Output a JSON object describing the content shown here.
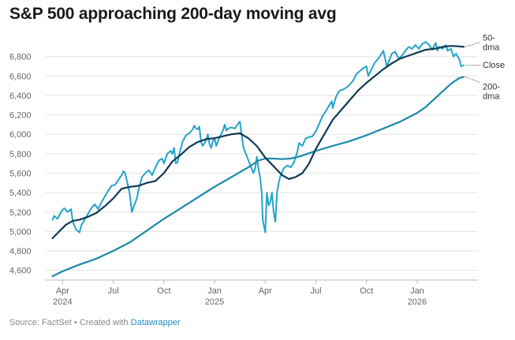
{
  "title": "S&P 500 approaching 200-day moving avg",
  "footer": {
    "source": "Source: FactSet",
    "separator": " • Created with ",
    "credit": "Datawrapper"
  },
  "colors": {
    "close": "#23a3c9",
    "dma50": "#0d3b56",
    "dma200": "#1a89a9",
    "grid": "#e2e2e2",
    "axis": "#bbbbbb"
  },
  "chart_data": {
    "type": "line",
    "title": "S&P 500 approaching 200-day moving avg",
    "xlabel": "",
    "ylabel": "",
    "x_unit": "months since Mar 1, 2024",
    "xlim": [
      0,
      25.6
    ],
    "ylim": [
      4500,
      6960
    ],
    "y_ticks": [
      4600,
      4800,
      5000,
      5200,
      5400,
      5600,
      5800,
      6000,
      6200,
      6400,
      6600,
      6800
    ],
    "y_tick_labels": [
      "4,600",
      "4,800",
      "5,000",
      "5,200",
      "5,400",
      "5,600",
      "5,800",
      "6,000",
      "6,200",
      "6,400",
      "6,600",
      "6,800"
    ],
    "x_ticks": [
      {
        "x": 1,
        "label": "Apr",
        "year": "2024"
      },
      {
        "x": 4,
        "label": "Jul",
        "year": ""
      },
      {
        "x": 7,
        "label": "Oct",
        "year": ""
      },
      {
        "x": 10,
        "label": "Jan",
        "year": "2025"
      },
      {
        "x": 13,
        "label": "Apr",
        "year": ""
      },
      {
        "x": 16,
        "label": "Jul",
        "year": ""
      },
      {
        "x": 19,
        "label": "Oct",
        "year": ""
      },
      {
        "x": 22,
        "label": "Jan",
        "year": "2026"
      }
    ],
    "grid": true,
    "series": [
      {
        "name": "Close",
        "end_label": "Close",
        "color_key": "close",
        "width": 2,
        "points": [
          [
            0.4,
            5120
          ],
          [
            0.5,
            5160
          ],
          [
            0.7,
            5130
          ],
          [
            0.9,
            5200
          ],
          [
            1.1,
            5240
          ],
          [
            1.3,
            5200
          ],
          [
            1.5,
            5230
          ],
          [
            1.6,
            5100
          ],
          [
            1.8,
            5020
          ],
          [
            2.0,
            4990
          ],
          [
            2.1,
            5060
          ],
          [
            2.3,
            5120
          ],
          [
            2.5,
            5180
          ],
          [
            2.7,
            5240
          ],
          [
            2.9,
            5280
          ],
          [
            3.1,
            5230
          ],
          [
            3.3,
            5300
          ],
          [
            3.5,
            5360
          ],
          [
            3.7,
            5420
          ],
          [
            3.9,
            5470
          ],
          [
            4.1,
            5480
          ],
          [
            4.3,
            5530
          ],
          [
            4.5,
            5580
          ],
          [
            4.6,
            5620
          ],
          [
            4.7,
            5600
          ],
          [
            4.9,
            5450
          ],
          [
            5.0,
            5360
          ],
          [
            5.1,
            5200
          ],
          [
            5.2,
            5250
          ],
          [
            5.4,
            5340
          ],
          [
            5.5,
            5430
          ],
          [
            5.7,
            5560
          ],
          [
            5.9,
            5600
          ],
          [
            6.1,
            5630
          ],
          [
            6.3,
            5580
          ],
          [
            6.5,
            5660
          ],
          [
            6.7,
            5730
          ],
          [
            6.9,
            5750
          ],
          [
            7.0,
            5700
          ],
          [
            7.2,
            5800
          ],
          [
            7.4,
            5830
          ],
          [
            7.5,
            5800
          ],
          [
            7.6,
            5860
          ],
          [
            7.7,
            5700
          ],
          [
            7.8,
            5710
          ],
          [
            7.9,
            5790
          ],
          [
            8.1,
            5920
          ],
          [
            8.3,
            5990
          ],
          [
            8.5,
            6010
          ],
          [
            8.7,
            6050
          ],
          [
            8.8,
            6090
          ],
          [
            8.9,
            6060
          ],
          [
            9.0,
            6050
          ],
          [
            9.1,
            6080
          ],
          [
            9.2,
            5920
          ],
          [
            9.3,
            5880
          ],
          [
            9.5,
            5940
          ],
          [
            9.6,
            6000
          ],
          [
            9.7,
            5900
          ],
          [
            9.8,
            5860
          ],
          [
            9.9,
            5930
          ],
          [
            10.0,
            5960
          ],
          [
            10.1,
            5880
          ],
          [
            10.3,
            5970
          ],
          [
            10.5,
            6040
          ],
          [
            10.6,
            6100
          ],
          [
            10.7,
            6040
          ],
          [
            10.8,
            6060
          ],
          [
            11.0,
            6070
          ],
          [
            11.2,
            6060
          ],
          [
            11.4,
            6110
          ],
          [
            11.5,
            6130
          ],
          [
            11.6,
            6000
          ],
          [
            11.7,
            5870
          ],
          [
            11.8,
            5820
          ],
          [
            11.9,
            5780
          ],
          [
            12.1,
            5690
          ],
          [
            12.3,
            5600
          ],
          [
            12.4,
            5640
          ],
          [
            12.5,
            5770
          ],
          [
            12.6,
            5650
          ],
          [
            12.7,
            5550
          ],
          [
            12.8,
            5390
          ],
          [
            12.85,
            5120
          ],
          [
            12.9,
            5080
          ],
          [
            13.0,
            4990
          ],
          [
            13.05,
            5200
          ],
          [
            13.1,
            5400
          ],
          [
            13.2,
            5270
          ],
          [
            13.3,
            5300
          ],
          [
            13.4,
            5400
          ],
          [
            13.5,
            5200
          ],
          [
            13.6,
            5100
          ],
          [
            13.65,
            5250
          ],
          [
            13.7,
            5400
          ],
          [
            13.8,
            5500
          ],
          [
            13.9,
            5570
          ],
          [
            14.1,
            5650
          ],
          [
            14.3,
            5680
          ],
          [
            14.5,
            5660
          ],
          [
            14.7,
            5710
          ],
          [
            14.9,
            5820
          ],
          [
            15.0,
            5910
          ],
          [
            15.2,
            5880
          ],
          [
            15.4,
            5960
          ],
          [
            15.6,
            5970
          ],
          [
            15.8,
            5980
          ],
          [
            16.0,
            6030
          ],
          [
            16.2,
            6110
          ],
          [
            16.4,
            6190
          ],
          [
            16.6,
            6240
          ],
          [
            16.8,
            6300
          ],
          [
            16.95,
            6340
          ],
          [
            17.0,
            6270
          ],
          [
            17.2,
            6390
          ],
          [
            17.4,
            6450
          ],
          [
            17.6,
            6460
          ],
          [
            17.8,
            6480
          ],
          [
            18.0,
            6510
          ],
          [
            18.2,
            6550
          ],
          [
            18.4,
            6620
          ],
          [
            18.6,
            6650
          ],
          [
            18.8,
            6680
          ],
          [
            19.0,
            6700
          ],
          [
            19.1,
            6600
          ],
          [
            19.3,
            6670
          ],
          [
            19.5,
            6740
          ],
          [
            19.7,
            6780
          ],
          [
            19.9,
            6830
          ],
          [
            20.0,
            6860
          ],
          [
            20.1,
            6780
          ],
          [
            20.2,
            6700
          ],
          [
            20.3,
            6740
          ],
          [
            20.5,
            6830
          ],
          [
            20.7,
            6850
          ],
          [
            20.9,
            6780
          ],
          [
            21.1,
            6810
          ],
          [
            21.3,
            6860
          ],
          [
            21.5,
            6900
          ],
          [
            21.7,
            6880
          ],
          [
            21.9,
            6920
          ],
          [
            22.1,
            6880
          ],
          [
            22.3,
            6930
          ],
          [
            22.5,
            6950
          ],
          [
            22.7,
            6920
          ],
          [
            22.9,
            6870
          ],
          [
            23.0,
            6910
          ],
          [
            23.1,
            6940
          ],
          [
            23.2,
            6860
          ],
          [
            23.3,
            6900
          ],
          [
            23.5,
            6880
          ],
          [
            23.7,
            6920
          ],
          [
            23.8,
            6860
          ],
          [
            24.0,
            6880
          ],
          [
            24.15,
            6800
          ],
          [
            24.3,
            6830
          ],
          [
            24.5,
            6770
          ],
          [
            24.6,
            6700
          ],
          [
            24.75,
            6710
          ]
        ]
      },
      {
        "name": "50-dma",
        "end_label": [
          "50-",
          "dma"
        ],
        "color_key": "dma50",
        "width": 2.2,
        "points": [
          [
            0.4,
            4930
          ],
          [
            0.8,
            5000
          ],
          [
            1.2,
            5070
          ],
          [
            1.6,
            5110
          ],
          [
            2.0,
            5120
          ],
          [
            2.5,
            5150
          ],
          [
            3.0,
            5190
          ],
          [
            3.5,
            5260
          ],
          [
            4.0,
            5340
          ],
          [
            4.5,
            5440
          ],
          [
            5.0,
            5460
          ],
          [
            5.5,
            5470
          ],
          [
            6.0,
            5500
          ],
          [
            6.5,
            5520
          ],
          [
            7.0,
            5600
          ],
          [
            7.5,
            5720
          ],
          [
            8.0,
            5790
          ],
          [
            8.5,
            5870
          ],
          [
            9.0,
            5920
          ],
          [
            9.5,
            5950
          ],
          [
            10.0,
            5960
          ],
          [
            10.5,
            5980
          ],
          [
            11.0,
            6000
          ],
          [
            11.5,
            6010
          ],
          [
            12.0,
            5960
          ],
          [
            12.5,
            5880
          ],
          [
            13.0,
            5760
          ],
          [
            13.5,
            5670
          ],
          [
            14.0,
            5580
          ],
          [
            14.4,
            5540
          ],
          [
            14.8,
            5560
          ],
          [
            15.2,
            5600
          ],
          [
            15.6,
            5700
          ],
          [
            16.0,
            5850
          ],
          [
            16.5,
            6000
          ],
          [
            17.0,
            6150
          ],
          [
            17.5,
            6250
          ],
          [
            18.0,
            6350
          ],
          [
            18.5,
            6450
          ],
          [
            19.0,
            6530
          ],
          [
            19.5,
            6600
          ],
          [
            20.0,
            6670
          ],
          [
            20.5,
            6730
          ],
          [
            21.0,
            6780
          ],
          [
            21.5,
            6810
          ],
          [
            22.0,
            6840
          ],
          [
            22.5,
            6870
          ],
          [
            23.0,
            6880
          ],
          [
            23.5,
            6900
          ],
          [
            24.0,
            6910
          ],
          [
            24.5,
            6905
          ],
          [
            24.75,
            6900
          ]
        ]
      },
      {
        "name": "200-dma",
        "end_label": [
          "200-",
          "dma"
        ],
        "color_key": "dma200",
        "width": 2.2,
        "points": [
          [
            0.4,
            4540
          ],
          [
            1.0,
            4590
          ],
          [
            2.0,
            4660
          ],
          [
            3.0,
            4720
          ],
          [
            4.0,
            4800
          ],
          [
            5.0,
            4890
          ],
          [
            6.0,
            5010
          ],
          [
            7.0,
            5130
          ],
          [
            8.0,
            5240
          ],
          [
            9.0,
            5350
          ],
          [
            10.0,
            5460
          ],
          [
            11.0,
            5560
          ],
          [
            12.0,
            5660
          ],
          [
            12.6,
            5730
          ],
          [
            13.0,
            5750
          ],
          [
            13.5,
            5750
          ],
          [
            14.0,
            5745
          ],
          [
            14.5,
            5750
          ],
          [
            15.0,
            5770
          ],
          [
            15.5,
            5800
          ],
          [
            16.0,
            5830
          ],
          [
            17.0,
            5880
          ],
          [
            18.0,
            5930
          ],
          [
            19.0,
            5990
          ],
          [
            20.0,
            6060
          ],
          [
            21.0,
            6130
          ],
          [
            22.0,
            6220
          ],
          [
            22.5,
            6280
          ],
          [
            23.0,
            6360
          ],
          [
            23.5,
            6440
          ],
          [
            24.0,
            6520
          ],
          [
            24.5,
            6580
          ],
          [
            24.75,
            6590
          ]
        ]
      }
    ]
  }
}
